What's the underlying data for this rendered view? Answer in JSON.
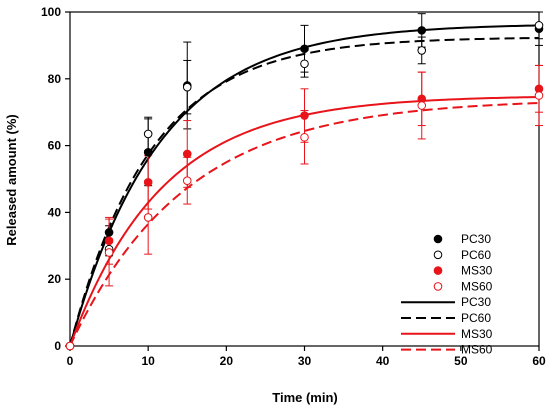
{
  "chart_data": {
    "type": "line",
    "xlabel": "Time (min)",
    "ylabel": "Released amount (%)",
    "xlim": [
      0,
      60
    ],
    "ylim": [
      0,
      100
    ],
    "xticks": [
      0,
      10,
      20,
      30,
      40,
      50,
      60
    ],
    "yticks": [
      0,
      20,
      40,
      60,
      80,
      100
    ],
    "grid": false,
    "legend_position": "lower-right",
    "x": [
      0,
      5,
      10,
      15,
      30,
      45,
      60
    ],
    "points": [
      {
        "name": "PC30",
        "marker": "filled-circle",
        "color": "#000000",
        "values": [
          0,
          34,
          58,
          78,
          89,
          94.5,
          95
        ],
        "errors": [
          0,
          2,
          10,
          13,
          7,
          5,
          5
        ]
      },
      {
        "name": "PC60",
        "marker": "open-circle",
        "color": "#000000",
        "values": [
          0,
          29,
          63.5,
          77.5,
          84.5,
          88.5,
          96
        ],
        "errors": [
          0,
          2,
          5,
          8,
          4,
          4,
          4
        ]
      },
      {
        "name": "MS30",
        "marker": "filled-circle",
        "color": "#e8141a",
        "values": [
          0,
          31.5,
          49,
          57.5,
          69,
          74,
          77
        ],
        "errors": [
          0,
          7,
          8,
          10,
          8,
          8,
          7
        ]
      },
      {
        "name": "MS60",
        "marker": "open-circle",
        "color": "#e8141a",
        "values": [
          0,
          28,
          38.5,
          49.5,
          62.5,
          72,
          75
        ],
        "errors": [
          0,
          10,
          11,
          7,
          8,
          10,
          9
        ]
      }
    ],
    "fits": [
      {
        "name": "PC30",
        "style": "solid",
        "color": "#000000",
        "plateau": 96.5,
        "rate": 0.087
      },
      {
        "name": "PC60",
        "style": "dashed",
        "color": "#000000",
        "plateau": 92.5,
        "rate": 0.097
      },
      {
        "name": "MS30",
        "style": "solid",
        "color": "#e8141a",
        "plateau": 75,
        "rate": 0.085
      },
      {
        "name": "MS60",
        "style": "dashed",
        "color": "#e8141a",
        "plateau": 74,
        "rate": 0.068
      }
    ],
    "legend": [
      "PC30",
      "PC60",
      "MS30",
      "MS60",
      "PC30",
      "PC60",
      "MS30",
      "MS60"
    ]
  }
}
